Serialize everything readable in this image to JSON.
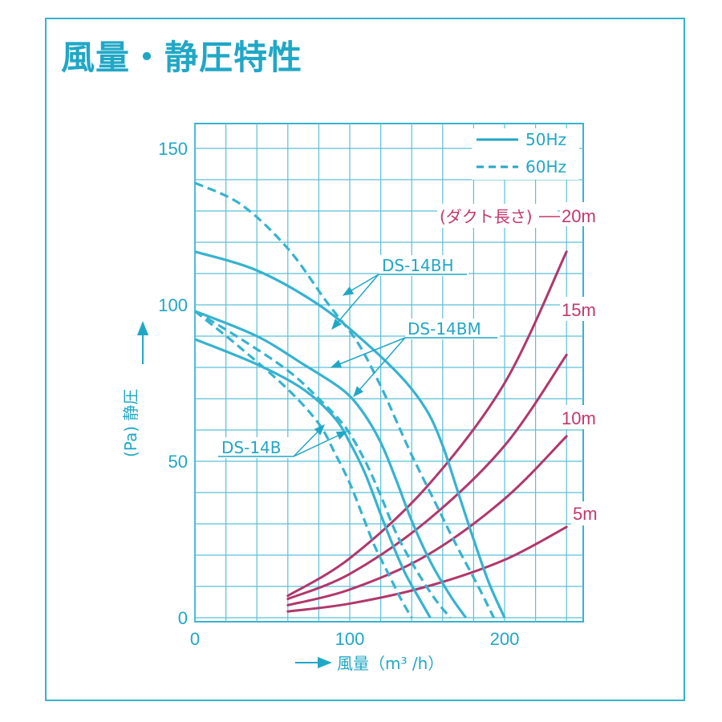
{
  "title": "風量・静圧特性",
  "chart_data": {
    "type": "line",
    "title": "風量・静圧特性",
    "xlabel": "風量（m³ /h）",
    "ylabel": "(Pa) 静圧",
    "xlim": [
      0,
      250
    ],
    "ylim": [
      0,
      150
    ],
    "xticks": [
      0,
      100,
      200
    ],
    "yticks": [
      0,
      50,
      100,
      150
    ],
    "grid": true,
    "legend": [
      {
        "label": "50Hz",
        "dash": "solid"
      },
      {
        "label": "60Hz",
        "dash": "dashed"
      }
    ],
    "fan_colors": {
      "fan": "#36b3cf",
      "duct": "#b2376b"
    },
    "series": [
      {
        "name": "DS-14BH",
        "freq": "50Hz",
        "x": [
          0,
          40,
          80,
          110,
          135,
          150,
          160,
          170,
          180,
          190,
          200
        ],
        "y": [
          117,
          111,
          100,
          88,
          76,
          66,
          55,
          40,
          25,
          11,
          0
        ]
      },
      {
        "name": "DS-14BH",
        "freq": "60Hz",
        "x": [
          0,
          30,
          60,
          85,
          105,
          120,
          130,
          140,
          155,
          168,
          183,
          193
        ],
        "y": [
          139,
          132,
          118,
          101,
          88,
          74,
          63,
          52,
          37,
          24,
          10,
          0
        ]
      },
      {
        "name": "DS-14BM",
        "freq": "50Hz",
        "x": [
          0,
          40,
          70,
          95,
          108,
          120,
          130,
          140,
          152,
          165,
          175
        ],
        "y": [
          98,
          90,
          81,
          73,
          66,
          56,
          44,
          31,
          18,
          7,
          0
        ]
      },
      {
        "name": "DS-14BM",
        "freq": "60Hz",
        "x": [
          0,
          30,
          60,
          80,
          97,
          110,
          120,
          130,
          142,
          155,
          165
        ],
        "y": [
          98,
          89,
          79,
          70,
          61,
          50,
          39,
          27,
          16,
          6,
          0
        ]
      },
      {
        "name": "DS-14B",
        "freq": "50Hz",
        "x": [
          0,
          40,
          70,
          90,
          100,
          110,
          120,
          128,
          136,
          145,
          152
        ],
        "y": [
          89,
          81,
          73,
          64,
          56,
          46,
          33,
          23,
          14,
          6,
          0
        ]
      },
      {
        "name": "DS-14B",
        "freq": "60Hz",
        "x": [
          0,
          30,
          60,
          80,
          90,
          100,
          108,
          116,
          125,
          133,
          140
        ],
        "y": [
          98,
          86,
          73,
          62,
          53,
          43,
          33,
          23,
          14,
          6,
          0
        ]
      }
    ],
    "duct_curves": [
      {
        "label": "5m",
        "x": [
          60,
          100,
          150,
          200,
          240
        ],
        "y": [
          2,
          4.5,
          10,
          18.5,
          29
        ]
      },
      {
        "label": "10m",
        "x": [
          60,
          100,
          150,
          200,
          240
        ],
        "y": [
          4,
          9,
          20,
          38,
          58
        ]
      },
      {
        "label": "15m",
        "x": [
          60,
          100,
          150,
          200,
          240
        ],
        "y": [
          6,
          14,
          31,
          55,
          84
        ]
      },
      {
        "label": "20m",
        "x": [
          60,
          100,
          150,
          200,
          240
        ],
        "y": [
          7,
          19,
          42,
          75,
          117
        ]
      }
    ],
    "duct_legend_note": "(ダクト長さ)"
  }
}
